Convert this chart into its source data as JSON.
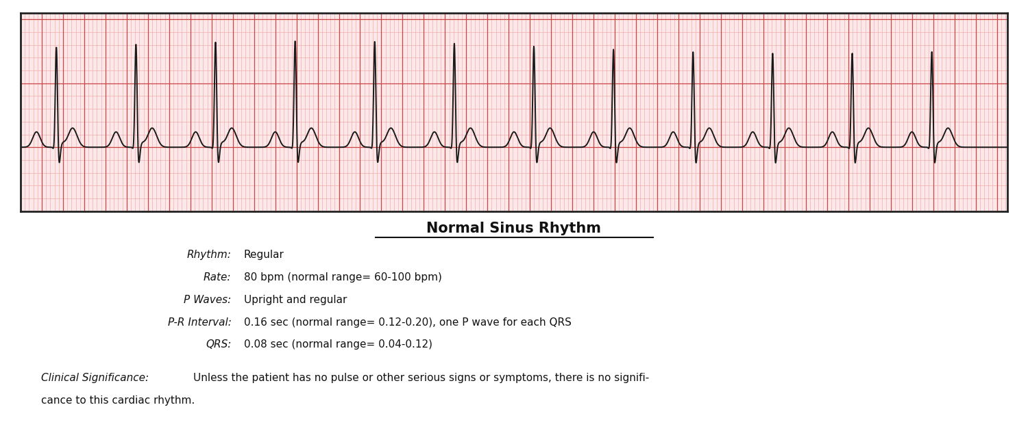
{
  "title": "Normal Sinus Rhythm",
  "ecg_bg_color": "#fce8e8",
  "ecg_grid_major_color": "#cc4444",
  "ecg_grid_minor_color": "#f0a0a0",
  "ecg_line_color": "#1a1a1a",
  "ecg_border_color": "#222222",
  "text_color": "#111111",
  "bg_color": "#ffffff",
  "rhythm_label": "Rhythm:",
  "rhythm_value": "Regular",
  "rate_label": "Rate:",
  "rate_value": "80 bpm (normal range= 60-100 bpm)",
  "pwaves_label": "P Waves:",
  "pwaves_value": "Upright and regular",
  "pr_label": "P-R Interval:",
  "pr_value": "0.16 sec (normal range= 0.12-0.20), one P wave for each QRS",
  "qrs_label": "QRS:",
  "qrs_value": "0.08 sec (normal range= 0.04-0.12)",
  "clinical_label": "Clinical Significance:",
  "clinical_value1": "Unless the patient has no pulse or other serious signs or symptoms, there is no signifi-",
  "clinical_value2": "cance to this cardiac rhythm."
}
